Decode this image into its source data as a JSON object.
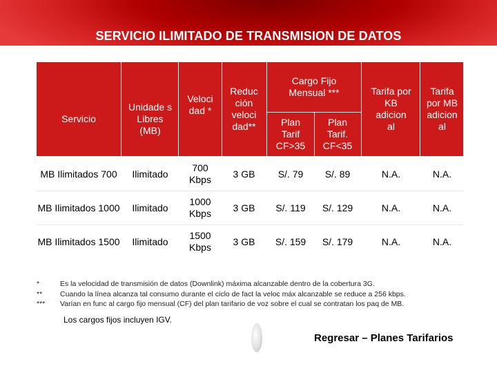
{
  "title": "SERVICIO ILIMITADO DE TRANSMISION DE DATOS",
  "table": {
    "headers": {
      "servicio": "Servicio",
      "unidades": "Unidade s Libres (MB)",
      "velocidad": "Veloci dad *",
      "reduccion": "Reduc ción veloci dad**",
      "cargo_fijo": "Cargo Fijo Mensual ***",
      "plan_mayor": "Plan Tarif CF>35",
      "plan_menor": "Plan Tarif. CF<35",
      "tarifa_kb": "Tarifa por KB adicion al",
      "tarifa_mb": "Tarifa por MB adicion al"
    },
    "rows": [
      {
        "servicio": "MB Ilimitados 700",
        "unidades": "Ilimitado",
        "velocidad": "700 Kbps",
        "reduccion": "3 GB",
        "plan_mayor": "S/. 79",
        "plan_menor": "S/. 89",
        "tarifa_kb": "N.A.",
        "tarifa_mb": "N.A."
      },
      {
        "servicio": "MB Ilimitados 1000",
        "unidades": "Ilimitado",
        "velocidad": "1000 Kbps",
        "reduccion": "3 GB",
        "plan_mayor": "S/. 119",
        "plan_menor": "S/. 129",
        "tarifa_kb": "N.A.",
        "tarifa_mb": "N.A."
      },
      {
        "servicio": "MB Ilimitados 1500",
        "unidades": "Ilimitado",
        "velocidad": "1500 Kbps",
        "reduccion": "3 GB",
        "plan_mayor": "S/. 159",
        "plan_menor": "S/. 179",
        "tarifa_kb": "N.A.",
        "tarifa_mb": "N.A."
      }
    ]
  },
  "notes": [
    {
      "mark": "*",
      "text": "Es la velocidad de transmisión de datos (Downlink) máxima alcanzable dentro de la cobertura 3G."
    },
    {
      "mark": "**",
      "text": "Cuando la línea alcanza tal consumo durante el ciclo de fact la veloc máx alcanzable se reduce a 256 kbps."
    },
    {
      "mark": "***",
      "text": "Varían en func al cargo fijo mensual (CF) del plan tarifario de voz sobre el cual se contratan los paq de MB."
    }
  ],
  "igv_note": "Los cargos fijos incluyen IGV.",
  "back_link": "Regresar – Planes Tarifarios"
}
